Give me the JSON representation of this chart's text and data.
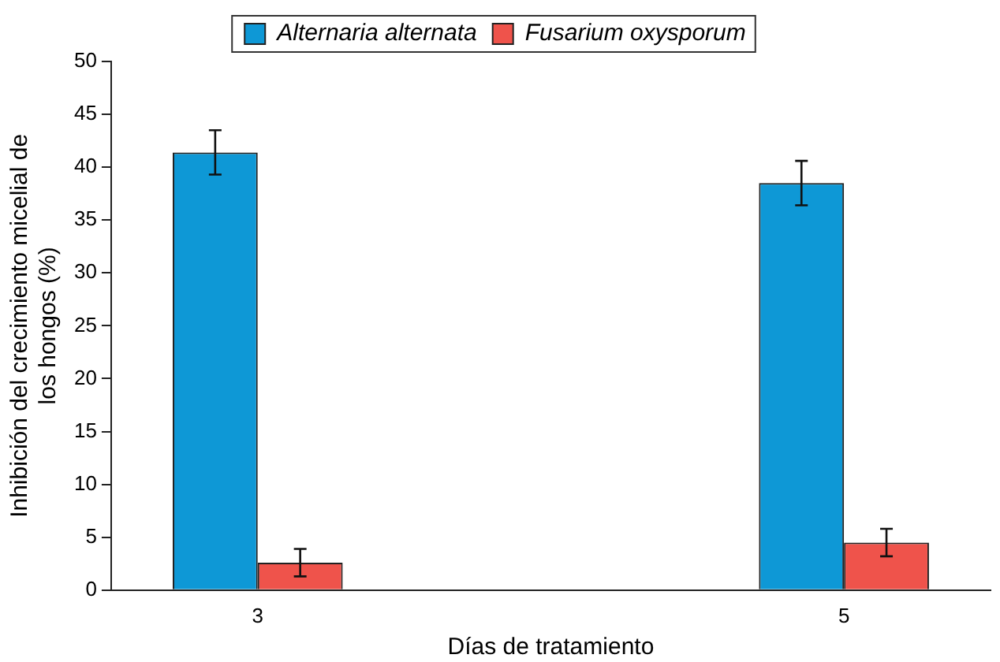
{
  "chart_data": {
    "type": "bar",
    "xlabel": "Días de tratamiento",
    "ylabel": "Inhibición del crecimiento micelial de\nlos hongos (%)",
    "categories": [
      "3",
      null,
      "5"
    ],
    "series": [
      {
        "name": "Alternaria alternata",
        "color": "#0e98d6",
        "values": [
          41.4,
          null,
          38.5
        ],
        "errors": [
          2.1,
          null,
          2.1
        ]
      },
      {
        "name": "Fusarium oxysporum",
        "color": "#ef534b",
        "values": [
          2.6,
          null,
          4.5
        ],
        "errors": [
          1.3,
          null,
          1.3
        ]
      }
    ],
    "ylim": [
      0,
      50
    ],
    "yticks": [
      0,
      5,
      10,
      15,
      20,
      25,
      30,
      35,
      40,
      45,
      50
    ],
    "grid": false,
    "legend": "top"
  }
}
